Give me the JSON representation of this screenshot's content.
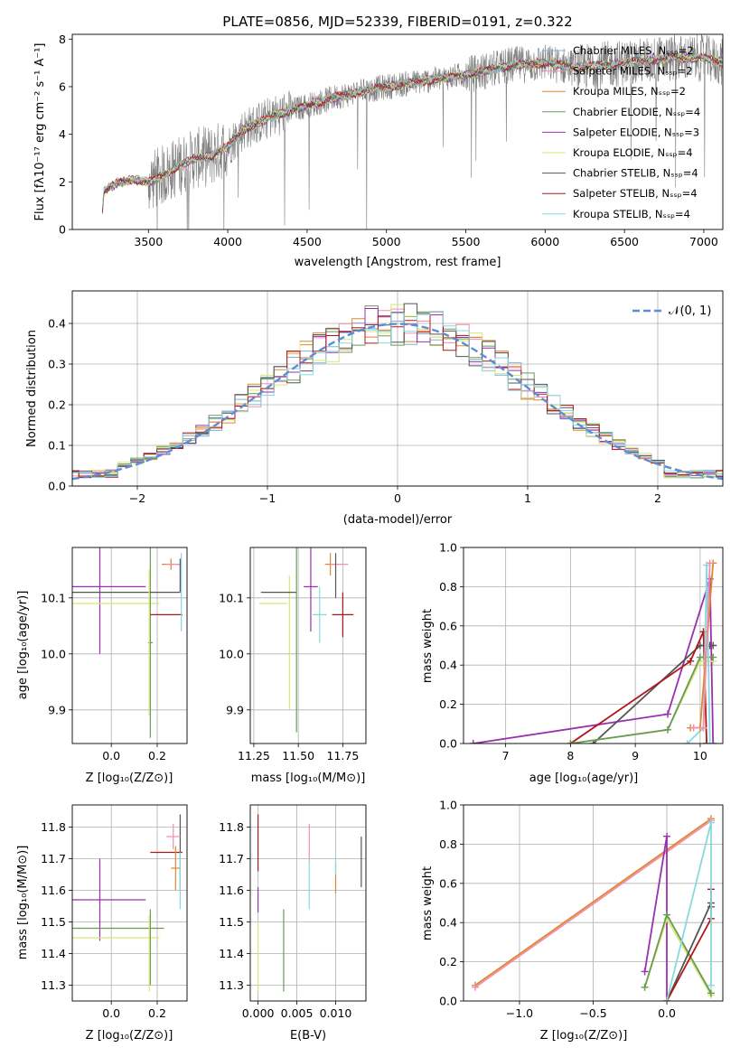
{
  "title": "PLATE=0856, MJD=52339, FIBERID=0191, z=0.322",
  "colors": {
    "Chabrier MILES": "#7fb0d8",
    "Salpeter MILES": "#f08fb0",
    "Kroupa MILES": "#e0882e",
    "Chabrier ELODIE": "#6a9a58",
    "Salpeter ELODIE": "#9a30b0",
    "Kroupa ELODIE": "#d8e870",
    "Chabrier STELIB": "#555555",
    "Salpeter STELIB": "#b01818",
    "Kroupa STELIB": "#88d8e0",
    "data": "#808080",
    "normal": "#5b8ed6"
  },
  "chart_data": [
    {
      "id": "spectrum",
      "type": "line",
      "title": "PLATE=0856, MJD=52339, FIBERID=0191, z=0.322",
      "xlabel": "wavelength [Angstrom, rest frame]",
      "ylabel": "Flux [fλ10⁻¹⁷ erg cm⁻² s⁻¹ A⁻¹]",
      "xlim": [
        3020,
        7120
      ],
      "ylim": [
        0,
        8.2
      ],
      "xticks": [
        3500,
        4000,
        4500,
        5000,
        5500,
        6000,
        6500,
        7000
      ],
      "yticks": [
        0,
        2,
        4,
        6,
        8
      ],
      "legend_position": "upper-right",
      "legend": [
        "Chabrier MILES, Nₛₛₚ=2",
        "Salpeter MILES, Nₛₛₚ=2",
        "Kroupa MILES, Nₛₛₚ=2",
        "Chabrier ELODIE, Nₛₛₚ=4",
        "Salpeter ELODIE, Nₛₛₚ=3",
        "Kroupa ELODIE, Nₛₛₚ=4",
        "Chabrier STELIB, Nₛₛₚ=4",
        "Salpeter STELIB, Nₛₛₚ=4",
        "Kroupa STELIB, Nₛₛₚ=4"
      ],
      "continuum": {
        "x": [
          3200,
          3220,
          3300,
          3400,
          3500,
          3600,
          3700,
          3800,
          3900,
          4000,
          4100,
          4200,
          4300,
          4500,
          4700,
          5000,
          5200,
          5500,
          5800,
          6000,
          6200,
          6500,
          6800,
          7000,
          7120
        ],
        "y": [
          0.0,
          1.6,
          1.95,
          2.1,
          2.0,
          2.3,
          2.7,
          3.0,
          3.1,
          3.5,
          4.2,
          4.5,
          4.8,
          5.2,
          5.6,
          6.0,
          6.2,
          6.5,
          6.9,
          7.0,
          6.8,
          7.0,
          7.2,
          7.2,
          7.0
        ]
      }
    },
    {
      "id": "residuals",
      "type": "histogram",
      "xlabel": "(data-model)/error",
      "ylabel": "Normed distribution",
      "xlim": [
        -2.5,
        2.5
      ],
      "ylim": [
        0,
        0.48
      ],
      "xticks": [
        -2,
        -1,
        0,
        1,
        2
      ],
      "yticks": [
        0.0,
        0.1,
        0.2,
        0.3,
        0.4
      ],
      "bin_width": 0.1,
      "legend": "𝒩(0, 1)",
      "legend_position": "upper-right"
    },
    {
      "id": "age-vs-Z",
      "type": "errorbar",
      "xlabel": "Z [log₁₀(Z/Z⊙)]",
      "ylabel": "age  [log₁₀(age/yr)]",
      "xlim": [
        -0.17,
        0.33
      ],
      "ylim": [
        9.84,
        10.19
      ],
      "xticks": [
        0.0,
        0.2
      ],
      "yticks": [
        9.9,
        10.0,
        10.1
      ],
      "points": [
        {
          "model": "Salpeter ELODIE",
          "x": -0.05,
          "xerr": 0.2,
          "y": 10.12,
          "yerr": 0.12
        },
        {
          "model": "Kroupa ELODIE",
          "x": 0.02,
          "xerr": 0.19,
          "y": 10.09,
          "yerr": 0.0
        },
        {
          "model": "Chabrier ELODIE",
          "x": 0.17,
          "xerr": 0.01,
          "y": 10.02,
          "yerr": 0.17
        },
        {
          "model": "Chabrier STELIB",
          "x": 0.05,
          "xerr": 0.25,
          "y": 10.11,
          "yerr": 0.0
        },
        {
          "model": "Kroupa ELODIE",
          "x": 0.165,
          "xerr": 0.0,
          "y": 10.02,
          "yerr": 0.13
        },
        {
          "model": "Salpeter STELIB",
          "x": 0.24,
          "xerr": 0.07,
          "y": 10.07,
          "yerr": 0.0
        },
        {
          "model": "Kroupa MILES",
          "x": 0.26,
          "xerr": 0.04,
          "y": 10.16,
          "yerr": 0.01
        },
        {
          "model": "Salpeter MILES",
          "x": 0.27,
          "xerr": 0.03,
          "y": 10.16,
          "yerr": 0.0
        },
        {
          "model": "Chabrier STELIB",
          "x": 0.3,
          "xerr": 0.0,
          "y": 10.14,
          "yerr": 0.03
        },
        {
          "model": "Kroupa STELIB",
          "x": 0.305,
          "xerr": 0.0,
          "y": 10.11,
          "yerr": 0.07
        }
      ]
    },
    {
      "id": "age-vs-mass",
      "type": "errorbar",
      "xlabel": "mass [log₁₀(M/M⊙)]",
      "ylabel": "",
      "xlim": [
        11.23,
        11.88
      ],
      "ylim": [
        9.84,
        10.19
      ],
      "xticks": [
        11.25,
        11.5,
        11.75
      ],
      "yticks": [
        9.9,
        10.0,
        10.1
      ],
      "points": [
        {
          "model": "Kroupa ELODIE",
          "x": 11.45,
          "xerr": 0.0,
          "y": 10.02,
          "yerr": 0.12
        },
        {
          "model": "Kroupa ELODIE",
          "x": 11.36,
          "xerr": 0.08,
          "y": 10.09,
          "yerr": 0.0
        },
        {
          "model": "Chabrier STELIB",
          "x": 11.39,
          "xerr": 0.1,
          "y": 10.11,
          "yerr": 0.0
        },
        {
          "model": "Chabrier ELODIE",
          "x": 11.49,
          "xerr": 0.0,
          "y": 10.03,
          "yerr": 0.17
        },
        {
          "model": "Salpeter ELODIE",
          "x": 11.57,
          "xerr": 0.04,
          "y": 10.12,
          "yerr": 0.08
        },
        {
          "model": "Kroupa STELIB",
          "x": 11.62,
          "xerr": 0.04,
          "y": 10.07,
          "yerr": 0.05
        },
        {
          "model": "Kroupa MILES",
          "x": 11.68,
          "xerr": 0.03,
          "y": 10.16,
          "yerr": 0.02
        },
        {
          "model": "Salpeter MILES",
          "x": 11.73,
          "xerr": 0.05,
          "y": 10.16,
          "yerr": 0.0
        },
        {
          "model": "Salpeter STELIB",
          "x": 11.75,
          "xerr": 0.06,
          "y": 10.07,
          "yerr": 0.04
        },
        {
          "model": "Chabrier STELIB",
          "x": 11.71,
          "xerr": 0.0,
          "y": 10.14,
          "yerr": 0.04
        }
      ]
    },
    {
      "id": "weight-vs-age",
      "type": "line",
      "xlabel": "age  [log₁₀(age/yr)]",
      "ylabel": "mass weight",
      "xlim": [
        6.35,
        10.35
      ],
      "ylim": [
        0,
        1
      ],
      "xticks": [
        7,
        8,
        9,
        10
      ],
      "yticks": [
        0.0,
        0.2,
        0.4,
        0.6,
        0.8,
        1.0
      ],
      "series": [
        {
          "model": "Salpeter ELODIE",
          "x": [
            6.5,
            9.5,
            10.15,
            10.2
          ],
          "y": [
            0.0,
            0.15,
            0.84,
            0.0
          ]
        },
        {
          "model": "Chabrier STELIB",
          "x": [
            8.35,
            10.0,
            10.15,
            10.2
          ],
          "y": [
            0.0,
            0.5,
            0.5,
            0.5
          ]
        },
        {
          "model": "Salpeter STELIB",
          "x": [
            8.0,
            9.85,
            10.05,
            10.1
          ],
          "y": [
            0.0,
            0.42,
            0.57,
            0.0
          ]
        },
        {
          "model": "Kroupa ELODIE",
          "x": [
            8.0,
            9.5,
            10.0,
            10.2
          ],
          "y": [
            0.0,
            0.07,
            0.42,
            0.42
          ]
        },
        {
          "model": "Chabrier ELODIE",
          "x": [
            8.0,
            9.5,
            10.0,
            10.2
          ],
          "y": [
            0.0,
            0.07,
            0.44,
            0.44
          ]
        },
        {
          "model": "Kroupa STELIB",
          "x": [
            9.8,
            10.05,
            10.1,
            10.15
          ],
          "y": [
            0.0,
            0.08,
            0.91,
            0.0
          ]
        },
        {
          "model": "Kroupa MILES",
          "x": [
            9.85,
            10.0,
            10.2
          ],
          "y": [
            0.08,
            0.08,
            0.92
          ]
        },
        {
          "model": "Salpeter MILES",
          "x": [
            9.9,
            10.05,
            10.15
          ],
          "y": [
            0.08,
            0.08,
            0.92
          ]
        }
      ]
    },
    {
      "id": "mass-vs-Z",
      "type": "errorbar",
      "xlabel": "Z [log₁₀(Z/Z⊙)]",
      "ylabel": "mass [log₁₀(M/M⊙)]",
      "xlim": [
        -0.17,
        0.33
      ],
      "ylim": [
        11.25,
        11.87
      ],
      "xticks": [
        0.0,
        0.2
      ],
      "yticks": [
        11.3,
        11.4,
        11.5,
        11.6,
        11.7,
        11.8
      ],
      "points": [
        {
          "model": "Salpeter ELODIE",
          "x": -0.05,
          "xerr": 0.2,
          "y": 11.57,
          "yerr": 0.13
        },
        {
          "model": "Chabrier ELODIE",
          "x": 0.03,
          "xerr": 0.2,
          "y": 11.48,
          "yerr": 0.0
        },
        {
          "model": "Kroupa ELODIE",
          "x": 0.02,
          "xerr": 0.19,
          "y": 11.45,
          "yerr": 0.0
        },
        {
          "model": "Chabrier ELODIE",
          "x": 0.17,
          "xerr": 0.0,
          "y": 11.42,
          "yerr": 0.12
        },
        {
          "model": "Kroupa ELODIE",
          "x": 0.165,
          "xerr": 0.0,
          "y": 11.4,
          "yerr": 0.12
        },
        {
          "model": "Salpeter STELIB",
          "x": 0.24,
          "xerr": 0.07,
          "y": 11.72,
          "yerr": 0.0
        },
        {
          "model": "Chabrier STELIB",
          "x": 0.3,
          "xerr": 0.0,
          "y": 11.72,
          "yerr": 0.12
        },
        {
          "model": "Salpeter MILES",
          "x": 0.27,
          "xerr": 0.03,
          "y": 11.77,
          "yerr": 0.04
        },
        {
          "model": "Kroupa MILES",
          "x": 0.28,
          "xerr": 0.02,
          "y": 11.67,
          "yerr": 0.07
        },
        {
          "model": "Kroupa STELIB",
          "x": 0.3,
          "xerr": 0.0,
          "y": 11.63,
          "yerr": 0.09
        }
      ]
    },
    {
      "id": "mass-vs-EBV",
      "type": "errorbar",
      "xlabel": "E(B-V)",
      "ylabel": "",
      "xlim": [
        -0.001,
        0.0139
      ],
      "ylim": [
        11.25,
        11.87
      ],
      "xticks": [
        0.0,
        0.005,
        0.01
      ],
      "yticks": [
        11.3,
        11.4,
        11.5,
        11.6,
        11.7,
        11.8
      ],
      "points": [
        {
          "model": "Salpeter STELIB",
          "x": 0.0,
          "xerr": 0.0,
          "y": 11.75,
          "yerr": 0.09
        },
        {
          "model": "Salpeter ELODIE",
          "x": 0.0,
          "xerr": 0.0,
          "y": 11.57,
          "yerr": 0.04
        },
        {
          "model": "Kroupa ELODIE",
          "x": 0.0,
          "xerr": 0.0,
          "y": 11.39,
          "yerr": 0.11
        },
        {
          "model": "Chabrier ELODIE",
          "x": 0.0033,
          "xerr": 0.0,
          "y": 11.41,
          "yerr": 0.13
        },
        {
          "model": "Salpeter MILES",
          "x": 0.0066,
          "xerr": 0.0,
          "y": 11.75,
          "yerr": 0.06
        },
        {
          "model": "Kroupa STELIB",
          "x": 0.0066,
          "xerr": 0.0,
          "y": 11.62,
          "yerr": 0.08
        },
        {
          "model": "Kroupa MILES",
          "x": 0.01,
          "xerr": 0.0,
          "y": 11.64,
          "yerr": 0.05
        },
        {
          "model": "Kroupa STELIB",
          "x": 0.01,
          "xerr": 0.0,
          "y": 11.68,
          "yerr": 0.03
        },
        {
          "model": "Chabrier STELIB",
          "x": 0.0133,
          "xerr": 0.0,
          "y": 11.69,
          "yerr": 0.08
        }
      ]
    },
    {
      "id": "weight-vs-Z",
      "type": "line",
      "xlabel": "Z [log₁₀(Z/Z⊙)]",
      "ylabel": "mass weight",
      "xlim": [
        -1.38,
        0.38
      ],
      "ylim": [
        0,
        1
      ],
      "xticks": [
        -1.0,
        -0.5,
        0.0
      ],
      "yticks": [
        0.0,
        0.2,
        0.4,
        0.6,
        0.8,
        1.0
      ],
      "series": [
        {
          "model": "Kroupa MILES",
          "x": [
            -1.3,
            0.3
          ],
          "y": [
            0.08,
            0.93
          ]
        },
        {
          "model": "Salpeter MILES",
          "x": [
            -1.3,
            0.3
          ],
          "y": [
            0.07,
            0.92
          ]
        },
        {
          "model": "Salpeter ELODIE",
          "x": [
            -0.15,
            0.0,
            0.0
          ],
          "y": [
            0.15,
            0.84,
            0.0
          ]
        },
        {
          "model": "Kroupa ELODIE",
          "x": [
            -0.15,
            0.0,
            0.3
          ],
          "y": [
            0.07,
            0.42,
            0.03
          ]
        },
        {
          "model": "Chabrier ELODIE",
          "x": [
            -0.15,
            0.0,
            0.3
          ],
          "y": [
            0.07,
            0.44,
            0.04
          ]
        },
        {
          "model": "Chabrier STELIB",
          "x": [
            0.0,
            0.3,
            0.3
          ],
          "y": [
            0.0,
            0.5,
            0.48
          ]
        },
        {
          "model": "Salpeter STELIB",
          "x": [
            0.0,
            0.3,
            0.3
          ],
          "y": [
            0.0,
            0.42,
            0.57
          ]
        },
        {
          "model": "Kroupa STELIB",
          "x": [
            0.0,
            0.3,
            0.3
          ],
          "y": [
            0.0,
            0.91,
            0.08
          ]
        }
      ]
    }
  ]
}
